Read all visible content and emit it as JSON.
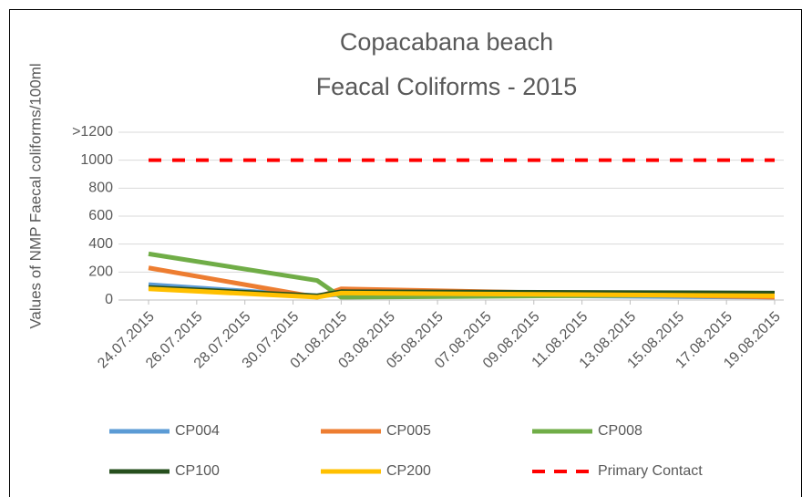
{
  "chart_data": {
    "type": "line",
    "title": [
      "Copacabana beach",
      "Feacal Coliforms - 2015"
    ],
    "ylabel": "Values of NMP Faecal coliforms/100ml",
    "x": [
      "24.07.2015",
      "31.07.2015",
      "01.08.2015",
      "19.08.2015"
    ],
    "xlim": [
      "24.07.2015",
      "19.08.2015"
    ],
    "xticks": [
      "24.07.2015",
      "26.07.2015",
      "28.07.2015",
      "30.07.2015",
      "01.08.2015",
      "03.08.2015",
      "05.08.2015",
      "07.08.2015",
      "09.08.2015",
      "11.08.2015",
      "13.08.2015",
      "15.08.2015",
      "17.08.2015",
      "19.08.2015"
    ],
    "ylim": [
      0,
      1200
    ],
    "yticks": [
      0,
      200,
      400,
      600,
      800,
      1000,
      {
        "value": 1200,
        "label": ">1200"
      }
    ],
    "grid": true,
    "series": [
      {
        "name": "CP004",
        "color": "#5b9bd5",
        "values": [
          110,
          30,
          40,
          20
        ]
      },
      {
        "name": "CP005",
        "color": "#ed7d31",
        "values": [
          230,
          20,
          80,
          20
        ]
      },
      {
        "name": "CP008",
        "color": "#70ad47",
        "values": [
          330,
          140,
          20,
          40
        ]
      },
      {
        "name": "CP100",
        "color": "#264f1d",
        "values": [
          90,
          30,
          60,
          50
        ]
      },
      {
        "name": "CP200",
        "color": "#ffc000",
        "values": [
          80,
          20,
          50,
          30
        ]
      },
      {
        "name": "Primary Contact",
        "color": "#ff0000",
        "dashed": true,
        "values": [
          1000,
          1000,
          1000,
          1000
        ]
      }
    ]
  }
}
